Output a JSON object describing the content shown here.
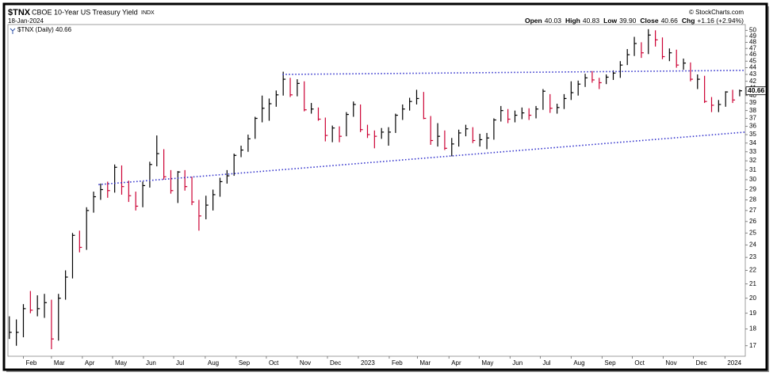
{
  "chart_data": {
    "type": "hlc",
    "symbol": "$TNX",
    "title": "CBOE 10-Year US Treasury Yield",
    "exchange": "INDX",
    "date": "18-Jan-2024",
    "credit": "© StockCharts.com",
    "quote": [
      {
        "label": "Open",
        "value": "40.03"
      },
      {
        "label": "High",
        "value": "40.83"
      },
      {
        "label": "Low",
        "value": "39.90"
      },
      {
        "label": "Close",
        "value": "40.66"
      },
      {
        "label": "Chg",
        "value": "+1.16 (+2.94%)"
      }
    ],
    "legend": "$TNX (Daily) 40.66",
    "last_label": "40.66",
    "up_color": "#000000",
    "down_color": "#cc0033",
    "log_scale": true,
    "xlim": [
      -0.2,
      104.8
    ],
    "ylim": [
      16.4,
      51
    ],
    "yticks": [
      17,
      18,
      19,
      20,
      21,
      22,
      23,
      24,
      25,
      26,
      27,
      28,
      29,
      30,
      31,
      32,
      33,
      34,
      35,
      36,
      37,
      38,
      39,
      40,
      41,
      42,
      43,
      44,
      45,
      46,
      47,
      48,
      49,
      50
    ],
    "xticks": [
      {
        "value": 2.0,
        "label": "Feb"
      },
      {
        "value": 6.0,
        "label": "Mar"
      },
      {
        "value": 10.4,
        "label": "Apr"
      },
      {
        "value": 14.7,
        "label": "May"
      },
      {
        "value": 19.1,
        "label": "Jun"
      },
      {
        "value": 23.4,
        "label": "Jul"
      },
      {
        "value": 27.9,
        "label": "Aug"
      },
      {
        "value": 32.3,
        "label": "Sep"
      },
      {
        "value": 36.6,
        "label": "Oct"
      },
      {
        "value": 41.0,
        "label": "Nov"
      },
      {
        "value": 45.3,
        "label": "Dec"
      },
      {
        "value": 49.7,
        "label": "2023"
      },
      {
        "value": 54.1,
        "label": "Feb"
      },
      {
        "value": 58.1,
        "label": "Mar"
      },
      {
        "value": 62.6,
        "label": "Apr"
      },
      {
        "value": 66.9,
        "label": "May"
      },
      {
        "value": 71.3,
        "label": "Jun"
      },
      {
        "value": 75.6,
        "label": "Jul"
      },
      {
        "value": 80.0,
        "label": "Aug"
      },
      {
        "value": 84.4,
        "label": "Sep"
      },
      {
        "value": 88.7,
        "label": "Oct"
      },
      {
        "value": 93.1,
        "label": "Nov"
      },
      {
        "value": 97.4,
        "label": "Dec"
      },
      {
        "value": 101.9,
        "label": "2024"
      }
    ],
    "high": [
      18.8,
      18.6,
      19.6,
      20.5,
      20.2,
      20.3,
      19.9,
      20.3,
      22.0,
      25.0,
      25.2,
      27.3,
      28.8,
      29.6,
      29.8,
      31.6,
      31.5,
      29.9,
      28.8,
      29.8,
      31.9,
      34.9,
      33.3,
      31.0,
      30.9,
      31.0,
      30.3,
      28.0,
      28.4,
      29.0,
      30.2,
      31.0,
      32.8,
      33.7,
      35.0,
      37.2,
      40.0,
      39.6,
      40.7,
      43.4,
      42.5,
      42.3,
      42.0,
      39.0,
      38.4,
      37.1,
      36.1,
      36.0,
      37.8,
      39.2,
      38.8,
      36.2,
      35.5,
      35.8,
      35.9,
      37.6,
      38.8,
      39.7,
      40.8,
      40.5,
      37.3,
      36.4,
      35.5,
      34.6,
      35.6,
      36.2,
      35.9,
      35.1,
      35.2,
      37.0,
      38.6,
      38.2,
      38.0,
      38.4,
      38.3,
      38.6,
      40.9,
      40.2,
      38.9,
      40.2,
      42.0,
      42.1,
      43.1,
      43.5,
      42.5,
      43.0,
      43.6,
      45.0,
      46.9,
      48.9,
      48.0,
      50.2,
      50.0,
      48.8,
      47.0,
      46.8,
      45.4,
      44.8,
      43.0,
      42.8,
      39.8,
      39.4,
      40.6,
      40.8,
      40.83
    ],
    "low": [
      17.4,
      17.0,
      17.5,
      19.0,
      18.8,
      18.7,
      16.8,
      17.3,
      19.9,
      21.4,
      23.4,
      23.6,
      26.8,
      28.0,
      28.2,
      28.7,
      28.5,
      27.8,
      27.0,
      27.3,
      29.2,
      31.4,
      30.0,
      28.6,
      27.7,
      28.9,
      27.5,
      25.2,
      26.2,
      27.0,
      28.3,
      29.6,
      30.4,
      32.4,
      33.0,
      34.5,
      36.5,
      36.7,
      38.5,
      40.0,
      39.8,
      39.9,
      37.9,
      37.6,
      36.7,
      34.2,
      34.1,
      34.1,
      34.8,
      37.2,
      35.3,
      34.6,
      33.4,
      34.5,
      33.7,
      35.2,
      36.8,
      38.0,
      38.8,
      36.9,
      33.8,
      33.6,
      33.2,
      32.5,
      33.6,
      34.8,
      34.0,
      33.6,
      33.3,
      34.4,
      36.6,
      36.4,
      36.5,
      36.9,
      36.8,
      37.0,
      38.1,
      37.7,
      37.6,
      38.2,
      39.4,
      40.0,
      41.2,
      41.8,
      40.9,
      41.6,
      42.2,
      42.5,
      44.4,
      45.8,
      45.5,
      46.1,
      47.3,
      45.3,
      45.0,
      44.0,
      43.7,
      42.0,
      40.9,
      39.0,
      37.8,
      37.8,
      38.5,
      39.0,
      39.9
    ],
    "close": [
      17.8,
      17.8,
      19.3,
      19.2,
      19.3,
      19.7,
      17.4,
      20.0,
      21.5,
      24.8,
      23.8,
      27.0,
      28.3,
      29.0,
      28.9,
      31.3,
      29.3,
      28.4,
      27.4,
      29.4,
      31.6,
      32.8,
      30.3,
      28.9,
      30.8,
      29.3,
      27.8,
      26.5,
      27.5,
      28.5,
      29.8,
      30.4,
      32.6,
      33.2,
      34.5,
      37.0,
      38.3,
      38.9,
      40.1,
      42.3,
      40.1,
      41.7,
      38.1,
      38.2,
      36.9,
      34.9,
      35.8,
      34.8,
      37.5,
      38.8,
      35.6,
      35.0,
      34.8,
      35.3,
      35.3,
      37.4,
      38.2,
      39.2,
      39.6,
      37.0,
      34.3,
      34.8,
      33.4,
      33.9,
      35.2,
      35.7,
      34.3,
      34.4,
      34.6,
      36.8,
      38.0,
      36.9,
      37.4,
      37.7,
      37.4,
      38.2,
      40.6,
      38.3,
      38.4,
      39.6,
      40.4,
      41.6,
      42.5,
      42.2,
      41.8,
      42.6,
      43.2,
      44.4,
      46.0,
      47.8,
      46.3,
      49.2,
      48.4,
      45.7,
      46.3,
      44.4,
      44.7,
      42.3,
      42.3,
      39.2,
      38.7,
      38.8,
      40.5,
      39.4,
      40.66
    ],
    "trendline_color": "#3333cc",
    "trendlines": [
      {
        "x": [
          38.9,
          104.8
        ],
        "y": [
          43.0,
          43.6
        ]
      },
      {
        "x": [
          12.7,
          104.8
        ],
        "y": [
          29.5,
          35.3
        ]
      }
    ]
  }
}
